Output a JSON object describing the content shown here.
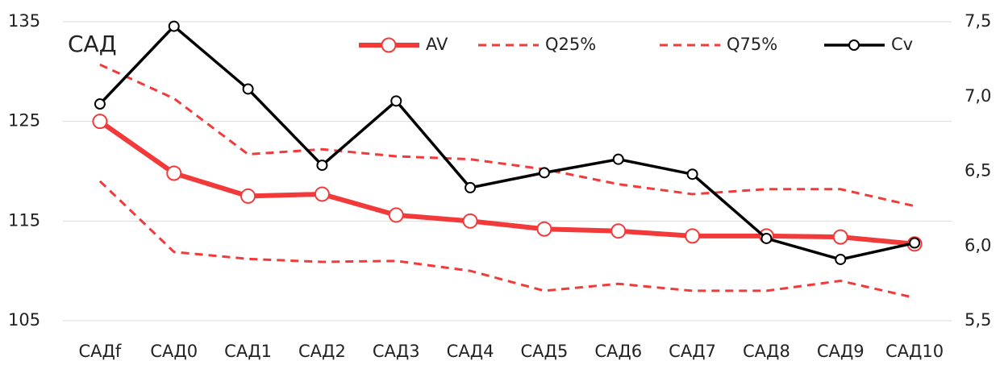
{
  "chart_data": {
    "type": "line",
    "annotation": "САД",
    "categories": [
      "САДf",
      "САД0",
      "САД1",
      "САД2",
      "САД3",
      "САД4",
      "САД5",
      "САД6",
      "САД7",
      "САД8",
      "САД9",
      "САД10"
    ],
    "series": [
      {
        "name": "AV",
        "color": "#f23a3a",
        "dashed": false,
        "marker": true,
        "values": [
          125.0,
          119.8,
          117.5,
          117.7,
          115.6,
          115.0,
          114.2,
          114.0,
          113.5,
          113.5,
          113.4,
          112.7
        ]
      },
      {
        "name": "Q25%",
        "color": "#f23a3a",
        "dashed": true,
        "marker": false,
        "values": [
          119.0,
          111.9,
          111.2,
          110.9,
          111.0,
          110.0,
          108.0,
          108.7,
          108.0,
          108.0,
          109.0,
          107.3
        ]
      },
      {
        "name": "Q75%",
        "color": "#f23a3a",
        "dashed": true,
        "marker": false,
        "values": [
          130.7,
          127.3,
          121.7,
          122.2,
          121.5,
          121.2,
          120.2,
          118.7,
          117.7,
          118.2,
          118.2,
          116.5
        ]
      },
      {
        "name": "Cv",
        "color": "#000000",
        "dashed": false,
        "marker": true,
        "axis": "y2",
        "values": [
          6.95,
          7.47,
          7.05,
          6.54,
          6.97,
          6.39,
          6.49,
          6.58,
          6.48,
          6.05,
          5.91,
          6.02
        ]
      }
    ],
    "ylim": [
      105,
      135
    ],
    "yticks": [
      105,
      115,
      125,
      135
    ],
    "y2lim": [
      5.5,
      7.5
    ],
    "y2ticks": [
      {
        "value": 5.5,
        "label": "5,5"
      },
      {
        "value": 6.0,
        "label": "6,0"
      },
      {
        "value": 6.5,
        "label": "6,5"
      },
      {
        "value": 7.0,
        "label": "7,0"
      },
      {
        "value": 7.5,
        "label": "7,5"
      }
    ],
    "grid": true,
    "legend": "top"
  }
}
